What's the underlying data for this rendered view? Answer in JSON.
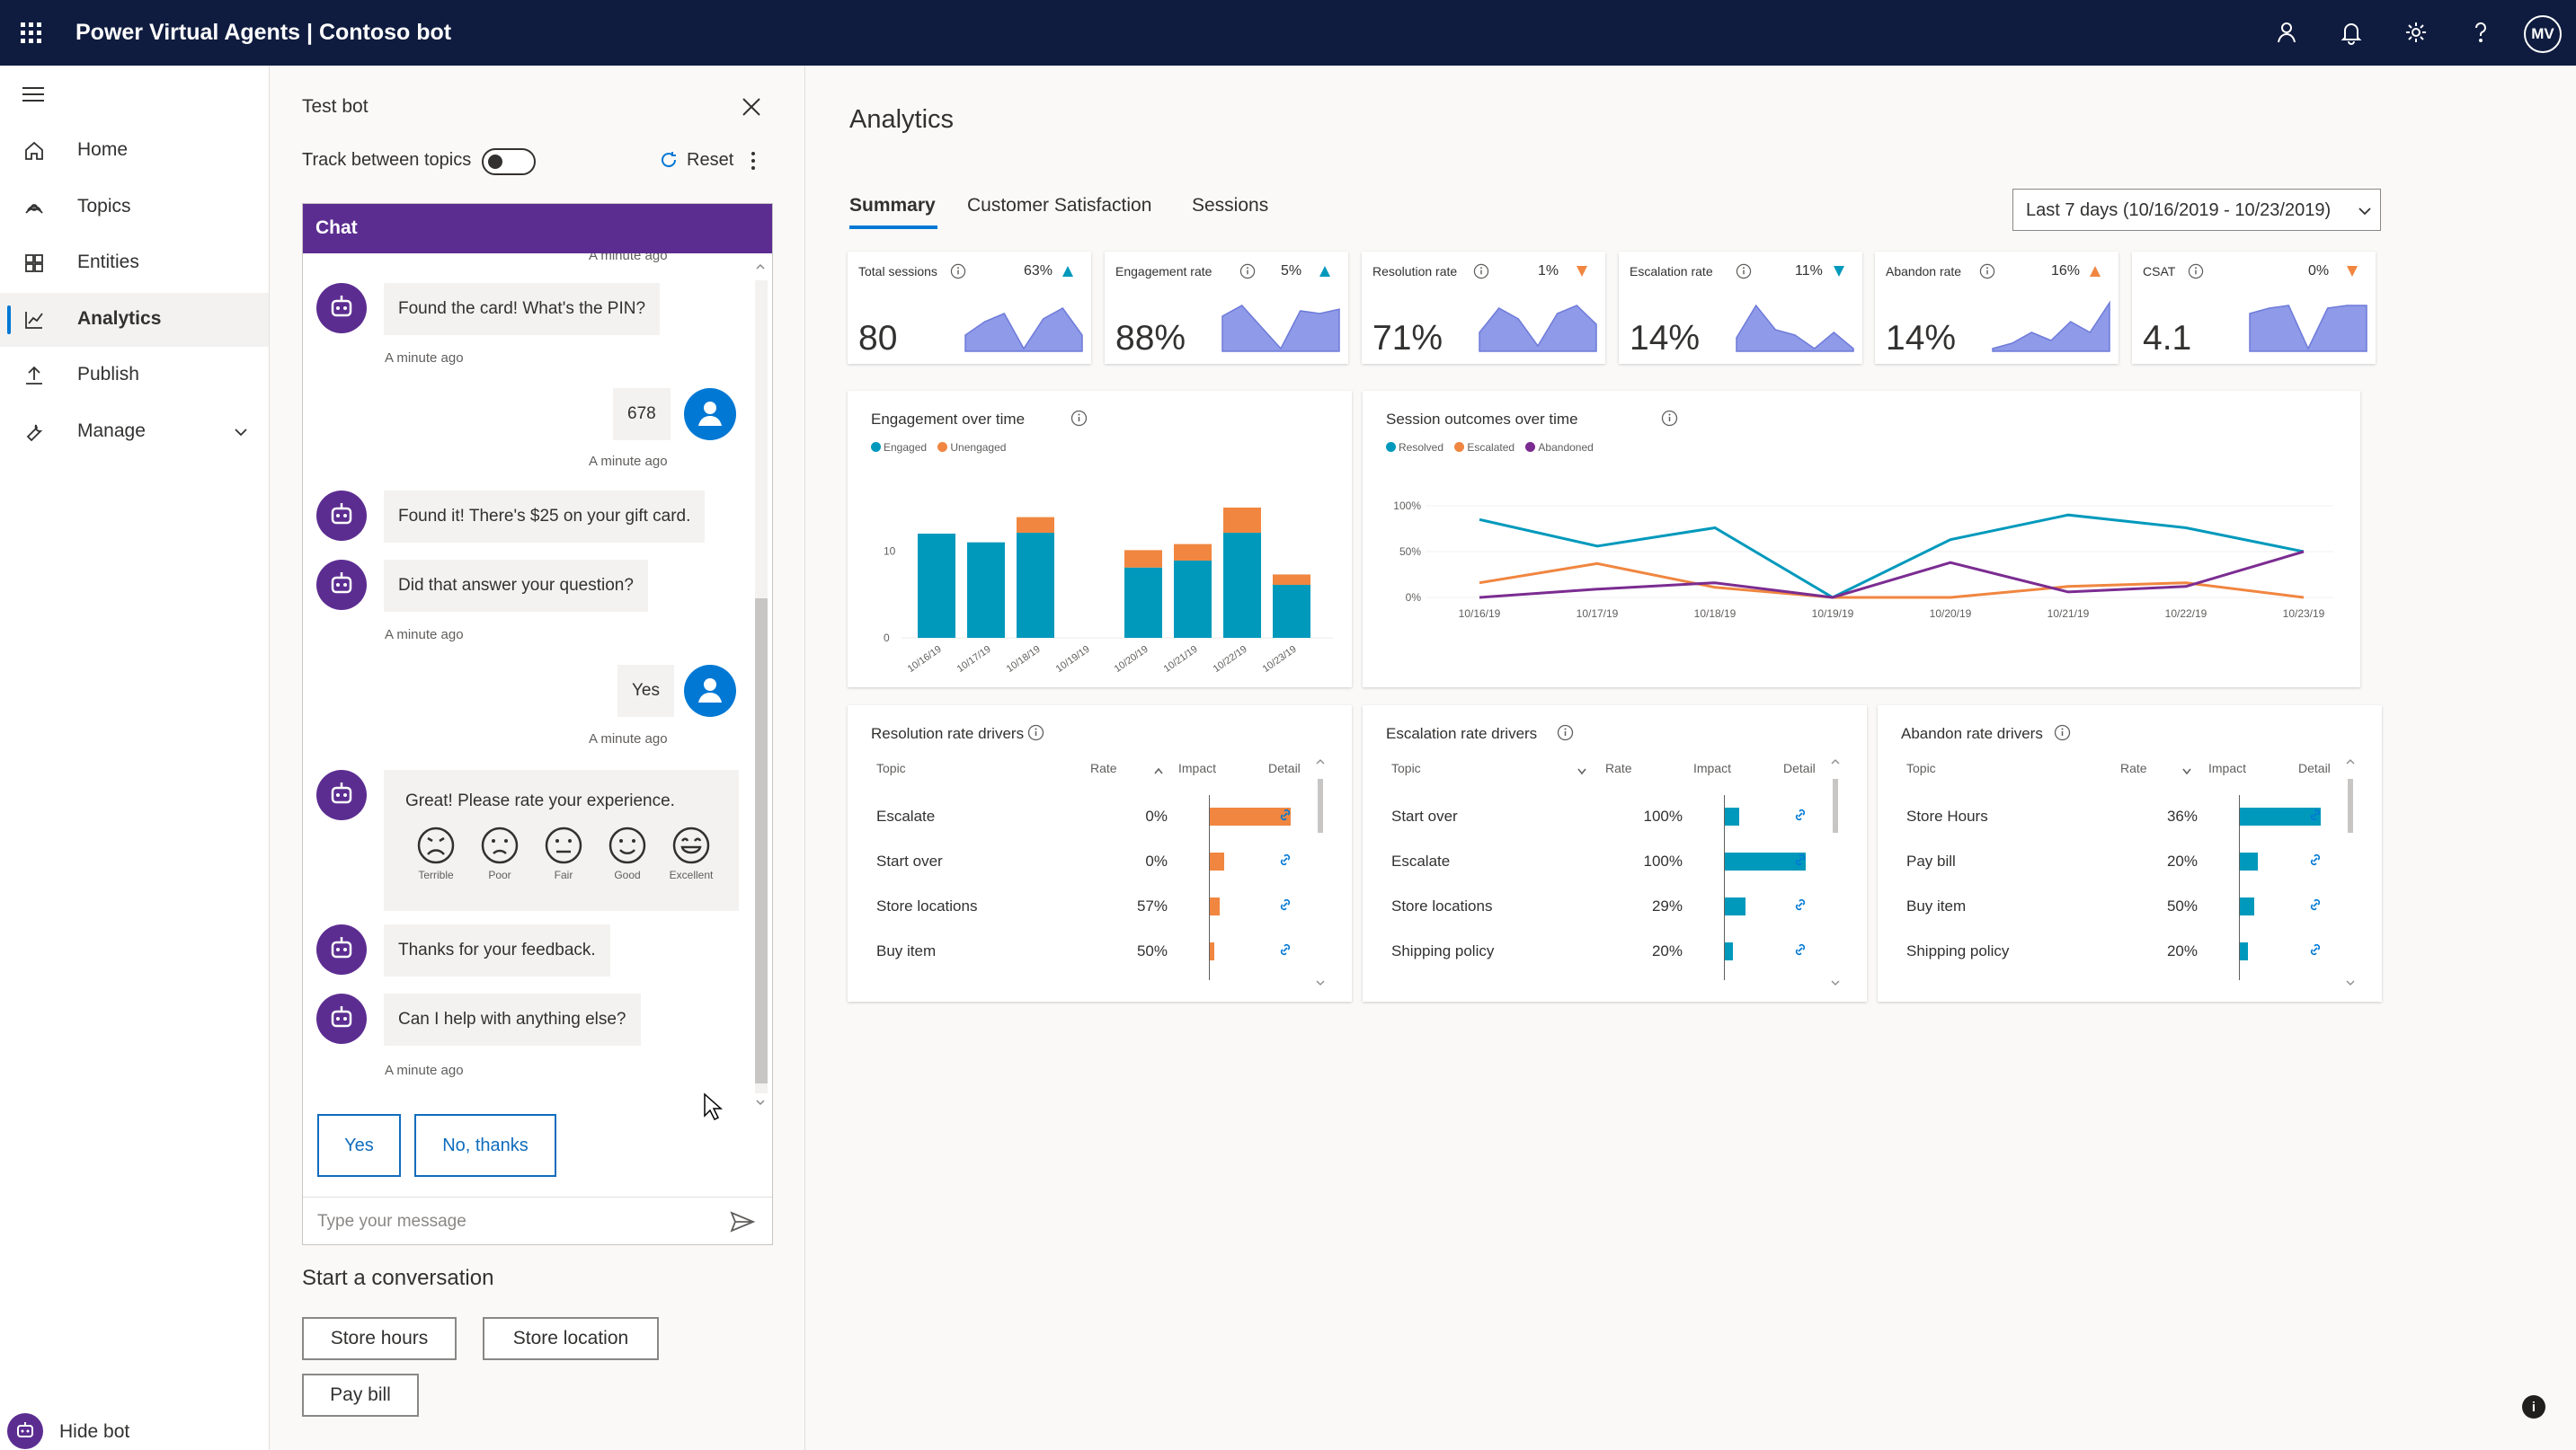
{
  "app": {
    "title": "Power Virtual Agents | Contoso bot",
    "avatar_initials": "MV"
  },
  "colors": {
    "topbar": "#0f1c3f",
    "brand_purple": "#5c2d91",
    "accent_blue": "#0078d4",
    "teal": "#0099bc",
    "orange": "#f08640",
    "purple_series": "#7b2c91",
    "spark_fill": "#8f9ae8"
  },
  "topbar_icons": [
    "person-icon",
    "bell-icon",
    "gear-icon",
    "help-icon"
  ],
  "nav": {
    "items": [
      {
        "label": "Home",
        "icon": "home-icon"
      },
      {
        "label": "Topics",
        "icon": "topics-icon"
      },
      {
        "label": "Entities",
        "icon": "entities-icon"
      },
      {
        "label": "Analytics",
        "icon": "analytics-icon",
        "active": true
      },
      {
        "label": "Publish",
        "icon": "publish-icon"
      },
      {
        "label": "Manage",
        "icon": "wrench-icon",
        "expandable": true
      }
    ],
    "hide_bot": "Hide bot"
  },
  "test_bot": {
    "title": "Test bot",
    "track_label": "Track between topics",
    "track_on": false,
    "reset_label": "Reset",
    "chat_header": "Chat",
    "messages": [
      {
        "ts": "A minute ago"
      },
      {
        "from": "bot",
        "text": "Found the card! What's the PIN?",
        "ts": "A minute ago"
      },
      {
        "from": "user",
        "text": "678",
        "ts": "A minute ago"
      },
      {
        "from": "bot",
        "text": "Found it! There's $25 on your gift card."
      },
      {
        "from": "bot",
        "text": "Did that answer your question?",
        "ts": "A minute ago"
      },
      {
        "from": "user",
        "text": "Yes",
        "ts": "A minute ago"
      },
      {
        "from": "bot",
        "text": "Great! Please rate your experience."
      },
      {
        "from": "bot",
        "text": "Thanks for your feedback."
      },
      {
        "from": "bot",
        "text": "Can I help with anything else?",
        "ts": "A minute ago"
      }
    ],
    "rating_options": [
      "Terrible",
      "Poor",
      "Fair",
      "Good",
      "Excellent"
    ],
    "suggested": [
      "Yes",
      "No, thanks"
    ],
    "input_placeholder": "Type your message",
    "start_conversation": "Start a conversation",
    "quick_topics": [
      "Store hours",
      "Store location",
      "Pay bill"
    ]
  },
  "analytics": {
    "title": "Analytics",
    "tabs": [
      "Summary",
      "Customer Satisfaction",
      "Sessions"
    ],
    "active_tab": "Summary",
    "date_range": "Last 7 days (10/16/2019 - 10/23/2019)",
    "kpis": [
      {
        "label": "Total sessions",
        "value": "80",
        "change": "63%",
        "trend": "up",
        "trend_color": "#0099bc",
        "spark": [
          0.3,
          0.55,
          0.7,
          0.05,
          0.6,
          0.8,
          0.3
        ]
      },
      {
        "label": "Engagement rate",
        "value": "88%",
        "change": "5%",
        "trend": "up",
        "trend_color": "#0099bc",
        "spark": [
          0.65,
          0.85,
          0.45,
          0.05,
          0.75,
          0.7,
          0.78
        ]
      },
      {
        "label": "Resolution rate",
        "value": "71%",
        "change": "1%",
        "trend": "down",
        "trend_color": "#f08640",
        "spark": [
          0.35,
          0.8,
          0.6,
          0.1,
          0.7,
          0.85,
          0.5
        ]
      },
      {
        "label": "Escalation rate",
        "value": "14%",
        "change": "11%",
        "trend": "down",
        "trend_color": "#0099bc",
        "spark": [
          0.25,
          0.85,
          0.4,
          0.3,
          0.05,
          0.35,
          0.05
        ]
      },
      {
        "label": "Abandon rate",
        "value": "14%",
        "change": "16%",
        "trend": "up",
        "trend_color": "#f08640",
        "spark": [
          0.05,
          0.15,
          0.35,
          0.2,
          0.55,
          0.35,
          0.9
        ]
      },
      {
        "label": "CSAT",
        "value": "4.1",
        "change": "0%",
        "trend": "down",
        "trend_color": "#f08640",
        "spark": [
          0.7,
          0.8,
          0.85,
          0.05,
          0.8,
          0.85,
          0.85
        ]
      }
    ],
    "engagement_panel": {
      "title": "Engagement over time",
      "legend": [
        "Engaged",
        "Unengaged"
      ]
    },
    "outcomes_panel": {
      "title": "Session outcomes over time",
      "legend": [
        "Resolved",
        "Escalated",
        "Abandoned"
      ]
    },
    "drivers": [
      {
        "title": "Resolution rate drivers",
        "headers": [
          "Topic",
          "Rate",
          "Impact",
          "Detail"
        ],
        "bar_color": "#f08640",
        "rows": [
          {
            "topic": "Escalate",
            "rate": "0%",
            "impact": 1.0
          },
          {
            "topic": "Start over",
            "rate": "0%",
            "impact": 0.18
          },
          {
            "topic": "Store locations",
            "rate": "57%",
            "impact": 0.12
          },
          {
            "topic": "Buy item",
            "rate": "50%",
            "impact": 0.06
          }
        ]
      },
      {
        "title": "Escalation rate drivers",
        "headers": [
          "Topic",
          "Rate",
          "Impact",
          "Detail"
        ],
        "bar_color": "#0099bc",
        "rows": [
          {
            "topic": "Start over",
            "rate": "100%",
            "impact": 0.18
          },
          {
            "topic": "Escalate",
            "rate": "100%",
            "impact": 1.0
          },
          {
            "topic": "Store locations",
            "rate": "29%",
            "impact": 0.25
          },
          {
            "topic": "Shipping policy",
            "rate": "20%",
            "impact": 0.1
          }
        ]
      },
      {
        "title": "Abandon rate drivers",
        "headers": [
          "Topic",
          "Rate",
          "Impact",
          "Detail"
        ],
        "bar_color": "#0099bc",
        "rows": [
          {
            "topic": "Store Hours",
            "rate": "36%",
            "impact": 1.0
          },
          {
            "topic": "Pay bill",
            "rate": "20%",
            "impact": 0.22
          },
          {
            "topic": "Buy item",
            "rate": "50%",
            "impact": 0.18
          },
          {
            "topic": "Shipping policy",
            "rate": "20%",
            "impact": 0.1
          }
        ]
      }
    ]
  },
  "chart_data": [
    {
      "type": "bar",
      "title": "Engagement over time",
      "stacked": true,
      "categories": [
        "10/16/19",
        "10/17/19",
        "10/18/19",
        "10/19/19",
        "10/20/19",
        "10/21/19",
        "10/22/19",
        "10/23/19"
      ],
      "series": [
        {
          "name": "Engaged",
          "color": "#0099bc",
          "values": [
            12,
            11,
            12.1,
            0,
            8.1,
            8.9,
            12.1,
            6.1
          ]
        },
        {
          "name": "Unengaged",
          "color": "#f08640",
          "values": [
            0,
            0,
            1.8,
            0,
            2,
            1.9,
            2.9,
            1.2
          ]
        }
      ],
      "yticks": [
        0,
        10
      ],
      "ylim": [
        0,
        15
      ],
      "legend": "top-left",
      "grid": false
    },
    {
      "type": "line",
      "title": "Session outcomes over time",
      "categories": [
        "10/16/19",
        "10/17/19",
        "10/18/19",
        "10/19/19",
        "10/20/19",
        "10/21/19",
        "10/22/19",
        "10/23/19"
      ],
      "series": [
        {
          "name": "Resolved",
          "color": "#0099bc",
          "values": [
            85,
            56,
            76,
            0,
            63,
            90,
            76,
            50
          ]
        },
        {
          "name": "Escalated",
          "color": "#f08640",
          "values": [
            16,
            37,
            11,
            0,
            0,
            12,
            16,
            0
          ]
        },
        {
          "name": "Abandoned",
          "color": "#7b2c91",
          "values": [
            0,
            9,
            16,
            0,
            38,
            6,
            12,
            50
          ]
        }
      ],
      "yticks": [
        "0%",
        "50%",
        "100%"
      ],
      "ylim": [
        0,
        100
      ],
      "legend": "top-left",
      "grid": false
    }
  ]
}
